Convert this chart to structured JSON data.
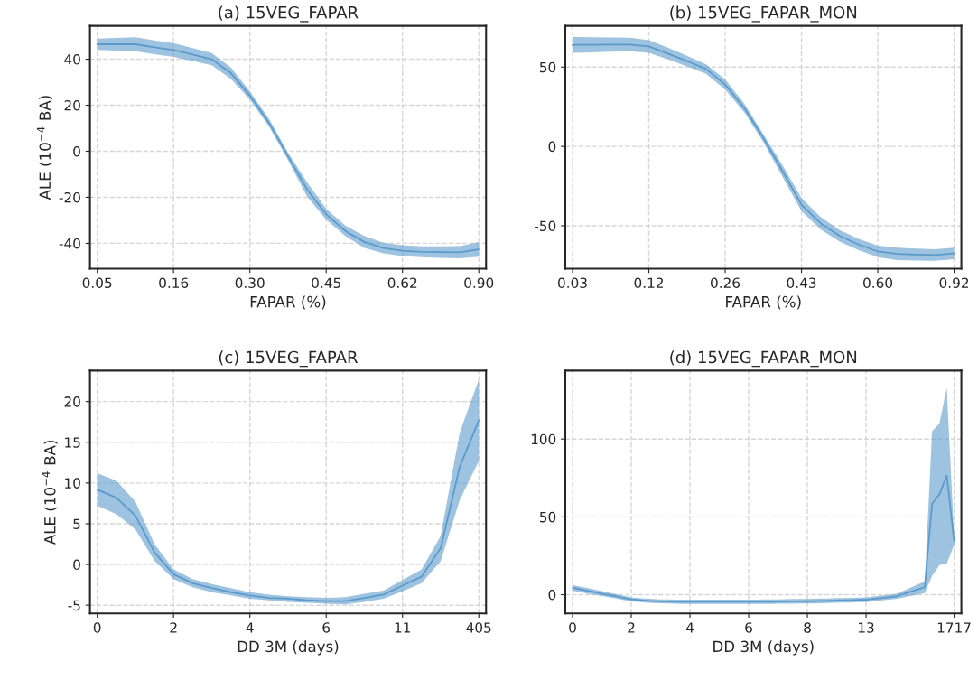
{
  "chart_data": [
    {
      "type": "line",
      "title": "(a) 15VEG_FAPAR",
      "xlabel": "FAPAR (%)",
      "ylabel": "ALE (10$^{−4}$ BA)",
      "grid": true,
      "categories": [
        "0.05",
        null,
        null,
        null,
        "0.16",
        null,
        null,
        null,
        "0.30",
        null,
        null,
        null,
        "0.45",
        null,
        null,
        null,
        "0.62",
        null,
        null,
        null,
        "0.90"
      ],
      "ylim": [
        -51,
        54.5
      ],
      "yticks": [
        -40,
        -20,
        0,
        20,
        40
      ],
      "series": [
        {
          "color": "#5b9bcb",
          "lower": [
            44,
            43.8,
            43.5,
            42.2,
            41,
            39.2,
            37.4,
            31.5,
            22.5,
            10.8,
            -3.8,
            -19.7,
            -29.7,
            -36.8,
            -42,
            -44.3,
            -45.5,
            -46,
            -46.3,
            -46.5,
            -45.8
          ],
          "upper": [
            49,
            49.2,
            49.5,
            48.2,
            47,
            44.8,
            42.7,
            36.5,
            26,
            14.1,
            -0.6,
            -13.4,
            -25,
            -32.3,
            -36.8,
            -39.7,
            -40.8,
            -41.3,
            -41.3,
            -41.2,
            -39.4
          ],
          "values": [
            46.5,
            46.5,
            46.5,
            45.2,
            44,
            42,
            40,
            34,
            24.2,
            12.4,
            -2.2,
            -16.6,
            -27.4,
            -34.6,
            -39.4,
            -42,
            -43.2,
            -43.7,
            -43.8,
            -43.9,
            -42.6
          ]
        }
      ]
    },
    {
      "type": "line",
      "title": "(b) 15VEG_FAPAR_MON",
      "xlabel": "FAPAR (%)",
      "grid": true,
      "categories": [
        "0.03",
        null,
        null,
        null,
        "0.12",
        null,
        null,
        null,
        "0.26",
        null,
        null,
        null,
        "0.43",
        null,
        null,
        null,
        "0.60",
        null,
        null,
        null,
        "0.92"
      ],
      "ylim": [
        -77,
        76
      ],
      "yticks": [
        -50,
        0,
        50
      ],
      "series": [
        {
          "color": "#5b9bcb",
          "lower": [
            59,
            59.3,
            59.7,
            60,
            59,
            54.8,
            50.4,
            45.8,
            35.8,
            21.6,
            2.8,
            -19,
            -40.8,
            -52.3,
            -60,
            -65.4,
            -69.8,
            -71.6,
            -71.9,
            -72,
            -71
          ],
          "upper": [
            69,
            68.8,
            68.7,
            68.5,
            67,
            62.2,
            57.2,
            51.7,
            42.2,
            27,
            7.8,
            -11.7,
            -32.5,
            -44.4,
            -52.7,
            -58.2,
            -62.5,
            -63.8,
            -64.3,
            -64.8,
            -63.8
          ],
          "values": [
            64,
            64,
            64.2,
            64.2,
            63,
            58.5,
            53.8,
            48.8,
            39,
            24.3,
            5.3,
            -15.4,
            -36.7,
            -48.4,
            -56.4,
            -61.8,
            -66.2,
            -67.7,
            -68.1,
            -68.4,
            -67.4
          ]
        }
      ]
    },
    {
      "type": "line",
      "title": "(c) 15VEG_FAPAR",
      "xlabel": "DD 3M (days)",
      "ylabel": "ALE (10$^{−4}$ BA)",
      "grid": true,
      "categories": [
        "0",
        null,
        null,
        null,
        "2",
        null,
        null,
        null,
        "4",
        null,
        null,
        null,
        "6",
        null,
        null,
        null,
        "11",
        null,
        null,
        null,
        "405"
      ],
      "ylim": [
        -6,
        23.8
      ],
      "yticks": [
        -5,
        0,
        5,
        10,
        15,
        20
      ],
      "series": [
        {
          "color": "#5b9bcb",
          "lower": [
            7.2,
            6.2,
            4.3,
            0.45,
            -1.8,
            -2.8,
            -3.4,
            -3.8,
            -4.2,
            -4.4,
            -4.6,
            -4.7,
            -4.8,
            -4.9,
            -4.6,
            -4.2,
            -3.3,
            -2.3,
            0.4,
            7.9,
            12.7
          ],
          "upper": [
            11.2,
            10.3,
            7.7,
            2.5,
            -0.6,
            -1.8,
            -2.4,
            -2.9,
            -3.4,
            -3.7,
            -3.9,
            -4,
            -4.1,
            -4,
            -3.6,
            -3.2,
            -1.9,
            -0.6,
            3.5,
            16.2,
            22.7
          ],
          "values": [
            9.2,
            8.2,
            6,
            1.5,
            -1.2,
            -2.3,
            -2.9,
            -3.4,
            -3.8,
            -4.1,
            -4.2,
            -4.4,
            -4.5,
            -4.5,
            -4.1,
            -3.7,
            -2.6,
            -1.5,
            2,
            12,
            17.7
          ]
        }
      ]
    },
    {
      "type": "line",
      "title": "(d) 15VEG_FAPAR_MON",
      "xlabel": "DD 3M (days)",
      "grid": true,
      "categories": [
        "0",
        null,
        null,
        null,
        null,
        null,
        null,
        null,
        "2",
        null,
        null,
        null,
        null,
        null,
        null,
        null,
        "4",
        null,
        null,
        null,
        null,
        null,
        null,
        null,
        "6",
        null,
        null,
        null,
        null,
        null,
        null,
        null,
        "8",
        null,
        null,
        null,
        null,
        null,
        null,
        null,
        "13",
        null,
        null,
        null,
        null,
        null,
        null,
        null,
        null,
        null,
        null,
        null,
        "1717"
      ],
      "ylim": [
        -12,
        144
      ],
      "yticks": [
        0,
        50,
        100
      ],
      "series": [
        {
          "color": "#5b9bcb",
          "lower": [
            2.5,
            1.7,
            0.8,
            0,
            -0.9,
            -1.7,
            -2.5,
            -3.4,
            -4.2,
            -4.6,
            -5,
            -5.3,
            -5.5,
            -5.7,
            -5.8,
            -5.9,
            -5.9,
            -5.9,
            -5.9,
            -5.9,
            -5.9,
            -5.9,
            -5.9,
            -5.9,
            -5.9,
            -5.9,
            -5.9,
            -5.9,
            -5.8,
            -5.8,
            -5.8,
            -5.7,
            -5.7,
            -5.6,
            -5.5,
            -5.4,
            -5.2,
            -5.1,
            -5,
            -4.8,
            -4.7,
            -4.2,
            -3.7,
            -3.2,
            -2.7,
            -1.8,
            -0.8,
            0.1,
            1,
            12,
            19,
            20,
            32
          ],
          "upper": [
            6.3,
            5.3,
            4.3,
            3.3,
            2.3,
            1.3,
            0.3,
            -0.7,
            -1.7,
            -2.1,
            -2.5,
            -2.8,
            -3,
            -3.1,
            -3.2,
            -3.2,
            -3.2,
            -3.2,
            -3.2,
            -3.2,
            -3.2,
            -3.2,
            -3.2,
            -3.2,
            -3.2,
            -3.2,
            -3.1,
            -3.1,
            -3,
            -2.9,
            -2.8,
            -2.8,
            -2.7,
            -2.6,
            -2.5,
            -2.4,
            -2.2,
            -2.1,
            -2,
            -1.8,
            -1.7,
            -1.2,
            -0.6,
            -0.1,
            0.4,
            2.4,
            4.4,
            6.5,
            8.5,
            105,
            110,
            133,
            37
          ],
          "values": [
            4.4,
            3.5,
            2.6,
            1.7,
            0.7,
            -0.2,
            -1.1,
            -2.1,
            -3,
            -3.4,
            -3.8,
            -4.1,
            -4.3,
            -4.4,
            -4.5,
            -4.6,
            -4.6,
            -4.6,
            -4.6,
            -4.6,
            -4.6,
            -4.6,
            -4.6,
            -4.6,
            -4.6,
            -4.6,
            -4.5,
            -4.5,
            -4.4,
            -4.4,
            -4.3,
            -4.3,
            -4.2,
            -4.1,
            -4,
            -3.9,
            -3.7,
            -3.6,
            -3.5,
            -3.3,
            -3.2,
            -2.7,
            -2.2,
            -1.7,
            -1.2,
            0.3,
            1.8,
            3.3,
            4.8,
            58.5,
            64.5,
            76.5,
            34.5
          ]
        }
      ]
    }
  ]
}
